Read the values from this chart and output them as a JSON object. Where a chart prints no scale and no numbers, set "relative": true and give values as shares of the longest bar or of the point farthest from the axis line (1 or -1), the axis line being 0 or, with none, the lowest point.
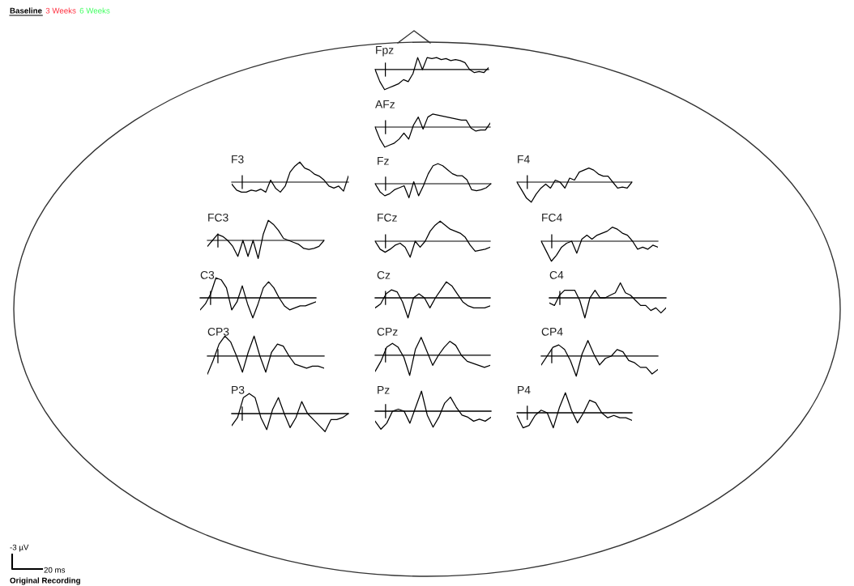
{
  "chart_data": [
    {
      "type": "line",
      "title": "Fpz",
      "relative": true,
      "color": "#000000",
      "categories": [
        null,
        null,
        null,
        null,
        null,
        null,
        null,
        null,
        null,
        null,
        null,
        null,
        null,
        null,
        null,
        null,
        null,
        null,
        null,
        null,
        null,
        null,
        null,
        null,
        null
      ],
      "values": [
        0,
        -0.6,
        -1.0,
        -0.9,
        -0.8,
        -0.7,
        -0.5,
        -0.6,
        -0.2,
        0.6,
        0.0,
        0.6,
        0.55,
        0.6,
        0.5,
        0.55,
        0.45,
        0.5,
        0.45,
        0.35,
        0.0,
        -0.15,
        -0.1,
        -0.15,
        0.1
      ]
    },
    {
      "type": "line",
      "title": "AFz",
      "relative": true,
      "color": "#000000",
      "categories": [
        null,
        null,
        null,
        null,
        null,
        null,
        null,
        null,
        null,
        null,
        null,
        null,
        null,
        null,
        null,
        null,
        null,
        null,
        null,
        null,
        null,
        null,
        null,
        null,
        null
      ],
      "values": [
        0,
        -0.6,
        -1.0,
        -0.9,
        -0.8,
        -0.6,
        -0.3,
        -0.6,
        0.1,
        0.5,
        -0.1,
        0.5,
        0.65,
        0.6,
        0.55,
        0.5,
        0.45,
        0.4,
        0.35,
        0.35,
        -0.05,
        -0.2,
        -0.15,
        -0.15,
        0.2
      ]
    },
    {
      "type": "line",
      "title": "F3",
      "relative": true,
      "color": "#000000",
      "categories": [
        null,
        null,
        null,
        null,
        null,
        null,
        null,
        null,
        null,
        null,
        null,
        null,
        null,
        null,
        null,
        null,
        null,
        null,
        null,
        null,
        null,
        null,
        null,
        null,
        null
      ],
      "values": [
        -0.1,
        -0.4,
        -0.5,
        -0.5,
        -0.4,
        -0.45,
        -0.35,
        -0.5,
        0.1,
        -0.3,
        -0.5,
        -0.2,
        0.5,
        0.8,
        1.0,
        0.7,
        0.6,
        0.4,
        0.3,
        0.1,
        -0.2,
        -0.3,
        -0.2,
        -0.45,
        0.3
      ]
    },
    {
      "type": "line",
      "title": "Fz",
      "relative": true,
      "color": "#000000",
      "categories": [
        null,
        null,
        null,
        null,
        null,
        null,
        null,
        null,
        null,
        null,
        null,
        null,
        null,
        null,
        null,
        null,
        null,
        null,
        null,
        null,
        null,
        null,
        null,
        null,
        null
      ],
      "values": [
        0,
        -0.4,
        -0.6,
        -0.5,
        -0.3,
        -0.2,
        -0.1,
        -0.7,
        0.1,
        -0.6,
        -0.1,
        0.5,
        0.9,
        1.0,
        0.9,
        0.7,
        0.5,
        0.4,
        0.4,
        0.2,
        -0.3,
        -0.35,
        -0.3,
        -0.2,
        0.0
      ]
    },
    {
      "type": "line",
      "title": "F4",
      "relative": true,
      "color": "#000000",
      "categories": [
        null,
        null,
        null,
        null,
        null,
        null,
        null,
        null,
        null,
        null,
        null,
        null,
        null,
        null,
        null,
        null,
        null,
        null,
        null,
        null,
        null,
        null,
        null,
        null,
        null
      ],
      "values": [
        0,
        -0.4,
        -0.8,
        -1.0,
        -0.6,
        -0.3,
        -0.1,
        -0.3,
        0.1,
        0.0,
        -0.3,
        0.2,
        0.1,
        0.5,
        0.6,
        0.7,
        0.6,
        0.4,
        0.3,
        0.3,
        0.0,
        -0.3,
        -0.25,
        -0.3,
        0.0
      ]
    },
    {
      "type": "line",
      "title": "FC3",
      "relative": true,
      "color": "#000000",
      "categories": [
        null,
        null,
        null,
        null,
        null,
        null,
        null,
        null,
        null,
        null,
        null,
        null,
        null,
        null,
        null,
        null,
        null,
        null,
        null,
        null,
        null,
        null,
        null,
        null
      ],
      "values": [
        -0.3,
        0.0,
        0.3,
        0.2,
        0.0,
        -0.3,
        -0.8,
        0.0,
        -0.8,
        0.0,
        -0.9,
        0.3,
        1.0,
        0.8,
        0.5,
        0.1,
        0.0,
        -0.1,
        -0.2,
        -0.4,
        -0.45,
        -0.4,
        -0.3,
        0.0
      ]
    },
    {
      "type": "line",
      "title": "FCz",
      "relative": true,
      "color": "#000000",
      "categories": [
        null,
        null,
        null,
        null,
        null,
        null,
        null,
        null,
        null,
        null,
        null,
        null,
        null,
        null,
        null,
        null,
        null,
        null,
        null,
        null,
        null,
        null,
        null,
        null
      ],
      "values": [
        0,
        -0.4,
        -0.55,
        -0.4,
        -0.2,
        -0.1,
        -0.3,
        -0.8,
        0.0,
        -0.3,
        0.0,
        0.5,
        0.8,
        1.0,
        0.8,
        0.6,
        0.5,
        0.4,
        0.2,
        -0.2,
        -0.5,
        -0.45,
        -0.4,
        -0.3
      ]
    },
    {
      "type": "line",
      "title": "FC4",
      "relative": true,
      "color": "#000000",
      "categories": [
        null,
        null,
        null,
        null,
        null,
        null,
        null,
        null,
        null,
        null,
        null,
        null,
        null,
        null,
        null,
        null,
        null,
        null,
        null,
        null,
        null,
        null,
        null,
        null
      ],
      "values": [
        0,
        -0.5,
        -1.0,
        -0.7,
        -0.3,
        -0.1,
        0.0,
        -0.6,
        0.1,
        0.3,
        0.1,
        0.3,
        0.4,
        0.5,
        0.7,
        0.6,
        0.4,
        0.3,
        0.0,
        -0.4,
        -0.3,
        -0.4,
        -0.2,
        -0.3
      ]
    },
    {
      "type": "line",
      "title": "C3",
      "relative": true,
      "color": "#000000",
      "categories": [
        null,
        null,
        null,
        null,
        null,
        null,
        null,
        null,
        null,
        null,
        null,
        null,
        null,
        null,
        null,
        null,
        null,
        null,
        null,
        null,
        null,
        null,
        null
      ],
      "values": [
        -0.6,
        -0.3,
        0.2,
        1.0,
        0.9,
        0.5,
        -0.6,
        -0.2,
        0.6,
        -0.3,
        -1.0,
        -0.3,
        0.5,
        0.8,
        0.5,
        0.0,
        -0.4,
        -0.6,
        -0.5,
        -0.4,
        -0.4,
        -0.3,
        -0.2
      ]
    },
    {
      "type": "line",
      "title": "Cz",
      "relative": true,
      "color": "#000000",
      "categories": [
        null,
        null,
        null,
        null,
        null,
        null,
        null,
        null,
        null,
        null,
        null,
        null,
        null,
        null,
        null,
        null,
        null,
        null,
        null,
        null,
        null,
        null
      ],
      "values": [
        -0.5,
        -0.3,
        0.2,
        0.4,
        0.3,
        -0.2,
        -1.0,
        0.0,
        0.2,
        0.0,
        -0.5,
        0.0,
        0.4,
        0.8,
        0.6,
        0.2,
        -0.2,
        -0.4,
        -0.5,
        -0.5,
        -0.5,
        -0.4
      ]
    },
    {
      "type": "line",
      "title": "C4",
      "relative": true,
      "color": "#000000",
      "categories": [
        null,
        null,
        null,
        null,
        null,
        null,
        null,
        null,
        null,
        null,
        null,
        null,
        null,
        null,
        null,
        null,
        null,
        null,
        null,
        null,
        null,
        null,
        null,
        null
      ],
      "values": [
        -0.25,
        -0.38,
        0.13,
        0.38,
        0.38,
        0.38,
        -0.13,
        -1.0,
        0.0,
        0.38,
        0.0,
        0.0,
        0.13,
        0.25,
        0.75,
        0.25,
        0.13,
        -0.13,
        -0.38,
        -0.38,
        -0.63,
        -0.5,
        -0.75,
        -0.5
      ]
    },
    {
      "type": "line",
      "title": "CP3",
      "relative": true,
      "color": "#000000",
      "categories": [
        null,
        null,
        null,
        null,
        null,
        null,
        null,
        null,
        null,
        null,
        null,
        null,
        null,
        null,
        null,
        null,
        null,
        null,
        null,
        null,
        null
      ],
      "values": [
        -0.9,
        -0.2,
        0.6,
        1.0,
        0.7,
        0.0,
        -0.8,
        0.2,
        1.0,
        0.0,
        -0.8,
        0.2,
        0.6,
        0.5,
        0.0,
        -0.4,
        -0.5,
        -0.6,
        -0.5,
        -0.5,
        -0.6
      ]
    },
    {
      "type": "line",
      "title": "CPz",
      "relative": true,
      "color": "#000000",
      "categories": [
        null,
        null,
        null,
        null,
        null,
        null,
        null,
        null,
        null,
        null,
        null,
        null,
        null,
        null,
        null,
        null,
        null,
        null,
        null,
        null,
        null
      ],
      "values": [
        -0.8,
        -0.3,
        0.4,
        0.6,
        0.4,
        -0.1,
        -1.0,
        0.3,
        0.9,
        0.2,
        -0.5,
        0.0,
        0.4,
        0.7,
        0.5,
        0.0,
        -0.3,
        -0.4,
        -0.5,
        -0.6,
        -0.5
      ]
    },
    {
      "type": "line",
      "title": "CP4",
      "relative": true,
      "color": "#000000",
      "categories": [
        null,
        null,
        null,
        null,
        null,
        null,
        null,
        null,
        null,
        null,
        null,
        null,
        null,
        null,
        null,
        null,
        null,
        null,
        null,
        null,
        null
      ],
      "values": [
        -0.44,
        0.0,
        0.44,
        0.56,
        0.33,
        -0.22,
        -1.0,
        0.11,
        0.78,
        0.11,
        -0.44,
        -0.11,
        0.0,
        0.33,
        0.22,
        -0.22,
        -0.33,
        -0.56,
        -0.56,
        -0.89,
        -0.67
      ]
    },
    {
      "type": "line",
      "title": "P3",
      "relative": true,
      "color": "#000000",
      "categories": [
        null,
        null,
        null,
        null,
        null,
        null,
        null,
        null,
        null,
        null,
        null,
        null,
        null,
        null,
        null,
        null,
        null,
        null,
        null,
        null,
        null
      ],
      "values": [
        -0.6,
        -0.2,
        0.8,
        1.0,
        0.8,
        -0.2,
        -0.8,
        0.2,
        0.8,
        0.0,
        -0.7,
        -0.2,
        0.6,
        0.0,
        -0.3,
        -0.6,
        -0.9,
        -0.3,
        -0.3,
        -0.2,
        0.0
      ]
    },
    {
      "type": "line",
      "title": "Pz",
      "relative": true,
      "color": "#000000",
      "categories": [
        null,
        null,
        null,
        null,
        null,
        null,
        null,
        null,
        null,
        null,
        null,
        null,
        null,
        null,
        null,
        null,
        null,
        null,
        null,
        null,
        null
      ],
      "values": [
        -0.5,
        -0.9,
        -0.6,
        0.0,
        0.1,
        0.0,
        -0.6,
        0.2,
        1.0,
        -0.2,
        -0.8,
        -0.3,
        0.4,
        0.7,
        0.2,
        -0.2,
        -0.3,
        -0.5,
        -0.4,
        -0.5,
        -0.3
      ]
    },
    {
      "type": "line",
      "title": "P4",
      "relative": true,
      "color": "#000000",
      "categories": [
        null,
        null,
        null,
        null,
        null,
        null,
        null,
        null,
        null,
        null,
        null,
        null,
        null,
        null,
        null,
        null,
        null,
        null,
        null,
        null
      ],
      "values": [
        -0.13,
        -0.75,
        -0.63,
        -0.13,
        0.13,
        0.0,
        -0.75,
        0.25,
        1.0,
        0.13,
        -0.5,
        0.0,
        0.63,
        0.5,
        0.0,
        -0.25,
        -0.13,
        -0.25,
        -0.25,
        -0.38
      ]
    },
    {
      "type": "other",
      "annotations": [
        "Baseline",
        "3 Weeks",
        "6 Weeks",
        "-3 µV",
        "20 ms",
        "Original Recording"
      ]
    }
  ]
}
